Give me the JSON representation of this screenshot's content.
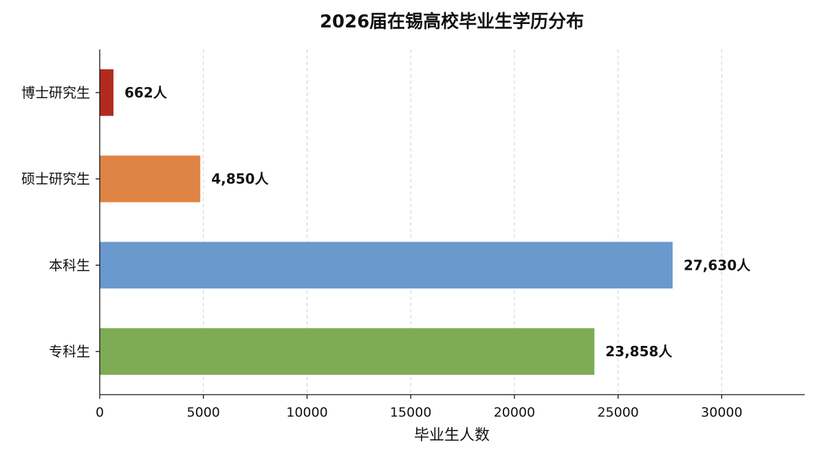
{
  "chart_data": {
    "type": "bar",
    "orientation": "horizontal",
    "title": "2026届在锡高校毕业生学历分布",
    "xlabel": "毕业生人数",
    "ylabel": "",
    "xlim": [
      0,
      34000
    ],
    "xticks": [
      0,
      5000,
      10000,
      15000,
      20000,
      25000,
      30000
    ],
    "xtick_labels": [
      "0",
      "5000",
      "10000",
      "15000",
      "20000",
      "25000",
      "30000"
    ],
    "grid": "x-dashed",
    "categories": [
      "博士研究生",
      "硕士研究生",
      "本科生",
      "专科生"
    ],
    "values": [
      662,
      4850,
      27630,
      23858
    ],
    "value_labels": [
      "662人",
      "4,850人",
      "27,630人",
      "23,858人"
    ],
    "colors": [
      "#b22a1f",
      "#df8444",
      "#6a99cd",
      "#7dac55"
    ]
  }
}
